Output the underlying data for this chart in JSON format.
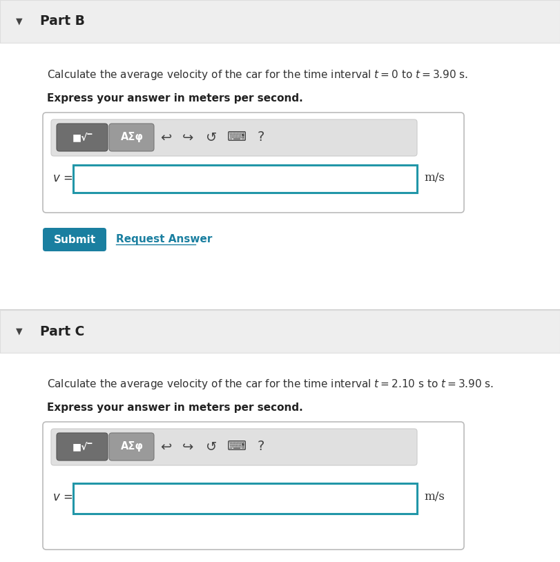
{
  "white": "#ffffff",
  "part_header_bg": "#eeeeee",
  "part_b_label": "Part B",
  "part_c_label": "Part C",
  "submit_bg": "#1a7fa0",
  "submit_text": "Submit",
  "request_answer_text": "Request Answer",
  "request_answer_color": "#1a7fa0",
  "input_border_color": "#2196a8",
  "separator_color": "#cccccc",
  "divider_color": "#dddddd"
}
